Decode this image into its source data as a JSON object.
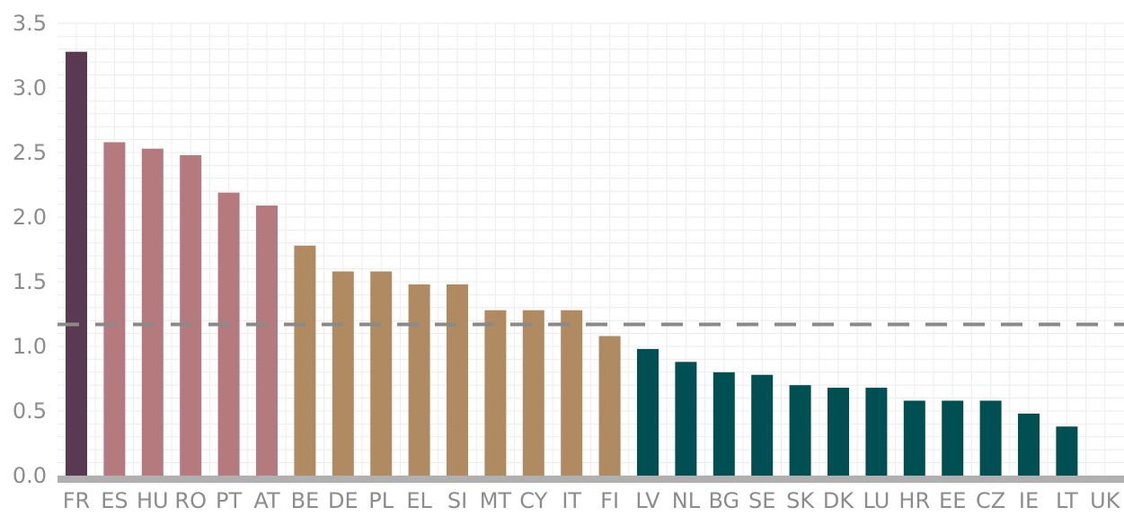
{
  "colors": {
    "top": "#5a3a52",
    "high": "#b57a7e",
    "mid": "#b08a60",
    "low": "#004f52",
    "reference_line": "#8a8a8a",
    "grid": "#ececec",
    "axis_baseline": "#b0b0b0",
    "tick_text": "#8c8c8c"
  },
  "chart_data": {
    "type": "bar",
    "title": "",
    "xlabel": "",
    "ylabel": "",
    "ylim": [
      0,
      3.5
    ],
    "yticks": [
      "0.0",
      "0.5",
      "1.0",
      "1.5",
      "2.0",
      "2.5",
      "3.0",
      "3.5"
    ],
    "grid": true,
    "reference_line": {
      "y": 1.17,
      "style": "dashed"
    },
    "categories": [
      "FR",
      "ES",
      "HU",
      "RO",
      "PT",
      "AT",
      "BE",
      "DE",
      "PL",
      "EL",
      "SI",
      "MT",
      "CY",
      "IT",
      "FI",
      "LV",
      "NL",
      "BG",
      "SE",
      "SK",
      "DK",
      "LU",
      "HR",
      "EE",
      "CZ",
      "IE",
      "LT",
      "UK"
    ],
    "values": [
      3.28,
      2.58,
      2.53,
      2.48,
      2.19,
      2.09,
      1.78,
      1.58,
      1.58,
      1.48,
      1.48,
      1.28,
      1.28,
      1.28,
      1.08,
      0.98,
      0.88,
      0.8,
      0.78,
      0.7,
      0.68,
      0.68,
      0.58,
      0.58,
      0.58,
      0.48,
      0.38,
      0
    ],
    "groups": [
      "top",
      "high",
      "high",
      "high",
      "high",
      "high",
      "mid",
      "mid",
      "mid",
      "mid",
      "mid",
      "mid",
      "mid",
      "mid",
      "mid",
      "low",
      "low",
      "low",
      "low",
      "low",
      "low",
      "low",
      "low",
      "low",
      "low",
      "low",
      "low",
      "low"
    ]
  }
}
